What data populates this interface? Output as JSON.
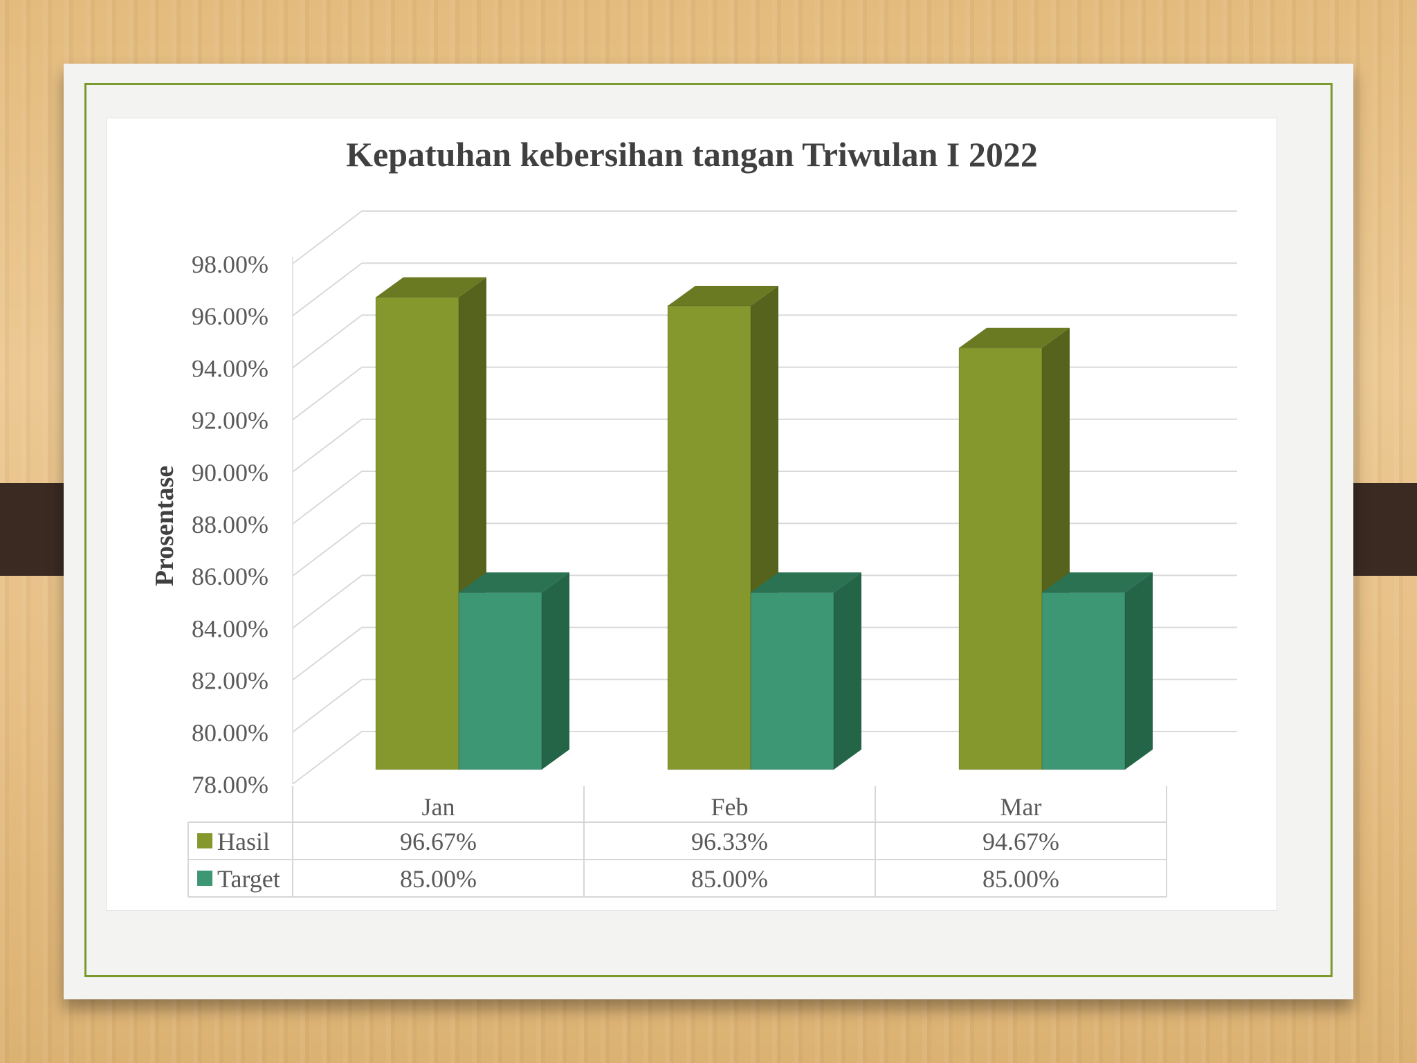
{
  "chart_data": {
    "type": "bar",
    "title": "Kepatuhan kebersihan tangan Triwulan I 2022",
    "ylabel": "Prosentase",
    "xlabel": "",
    "categories": [
      "Jan",
      "Feb",
      "Mar"
    ],
    "series": [
      {
        "name": "Hasil",
        "values": [
          96.67,
          96.33,
          94.67
        ],
        "labels": [
          "96.67%",
          "96.33%",
          "94.67%"
        ],
        "color": "#84982d"
      },
      {
        "name": "Target",
        "values": [
          85.0,
          85.0,
          85.0
        ],
        "labels": [
          "85.00%",
          "85.00%",
          "85.00%"
        ],
        "color": "#3d9674"
      }
    ],
    "y_ticks": [
      "98.00%",
      "96.00%",
      "94.00%",
      "92.00%",
      "90.00%",
      "88.00%",
      "86.00%",
      "84.00%",
      "82.00%",
      "80.00%",
      "78.00%"
    ],
    "ylim": [
      78,
      98
    ],
    "grid": true,
    "legend": "data-table-below"
  },
  "colors": {
    "hasil_side": "#55631c",
    "hasil_top": "#6a7a22",
    "target_side": "#246447",
    "target_top": "#2b7253"
  }
}
